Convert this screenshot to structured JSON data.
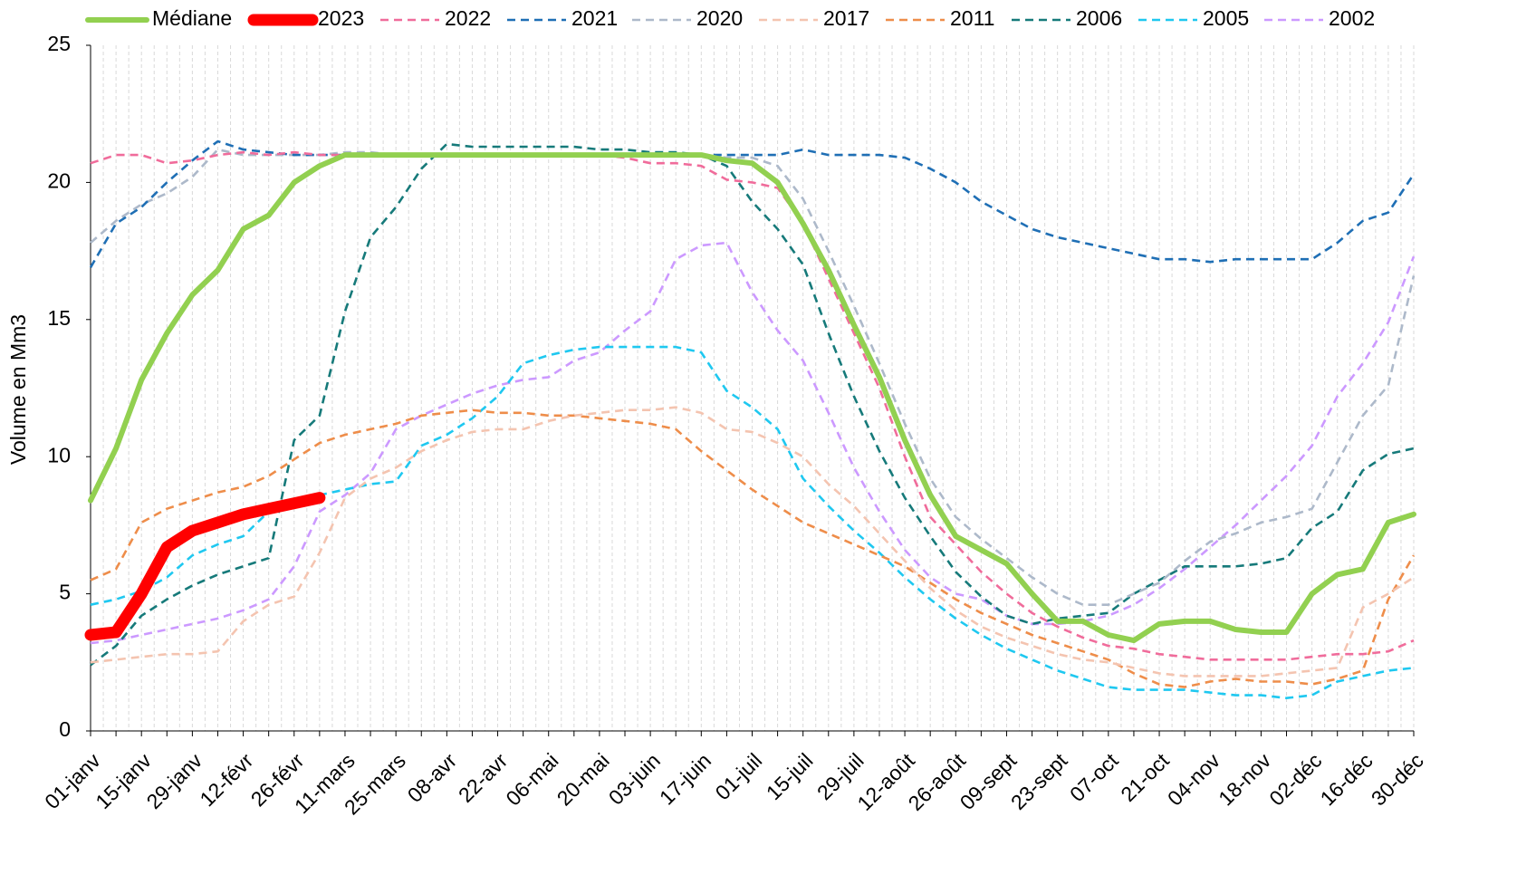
{
  "chart_data": {
    "type": "line",
    "y_label": "Volume en Mm3",
    "categories": [
      "01-janv",
      null,
      "15-janv",
      null,
      "29-janv",
      null,
      "12-févr",
      null,
      "26-févr",
      null,
      "11-mars",
      null,
      "25-mars",
      null,
      "08-avr",
      null,
      "22-avr",
      null,
      "06-mai",
      null,
      "20-mai",
      null,
      "03-juin",
      null,
      "17-juin",
      null,
      "01-juil",
      null,
      "15-juil",
      null,
      "29-juil",
      null,
      "12-août",
      null,
      "26-août",
      null,
      "09-sept",
      null,
      "23-sept",
      null,
      "07-oct",
      null,
      "21-oct",
      null,
      "04-nov",
      null,
      "18-nov",
      null,
      "02-déc",
      null,
      "16-déc",
      null,
      "30-déc"
    ],
    "ylim": [
      0,
      25
    ],
    "yticks": [
      0,
      5,
      10,
      15,
      20,
      25
    ],
    "grid": true,
    "legend": "top",
    "series": [
      {
        "name": "Médiane",
        "color": "#92d050",
        "style": "solid",
        "values": [
          8.4,
          10.3,
          12.8,
          14.5,
          15.9,
          16.8,
          18.3,
          18.8,
          20.0,
          20.6,
          21.0,
          21.0,
          21.0,
          21.0,
          21.0,
          21.0,
          21.0,
          21.0,
          21.0,
          21.0,
          21.0,
          21.0,
          21.0,
          21.0,
          21.0,
          20.8,
          20.7,
          20.0,
          18.5,
          16.8,
          14.8,
          12.9,
          10.6,
          8.6,
          7.1,
          6.6,
          6.1,
          5.0,
          4.0,
          4.0,
          3.5,
          3.3,
          3.9,
          4.0,
          4.0,
          3.7,
          3.6,
          3.6,
          5.0,
          5.7,
          5.9,
          7.6,
          7.9
        ]
      },
      {
        "name": "2023",
        "color": "#ff0000",
        "style": "solid",
        "values": [
          3.5,
          3.6,
          5.0,
          6.7,
          7.3,
          7.6,
          7.9,
          8.1,
          8.3,
          8.5,
          null,
          null,
          null,
          null,
          null,
          null,
          null,
          null,
          null,
          null,
          null,
          null,
          null,
          null,
          null,
          null,
          null,
          null,
          null,
          null,
          null,
          null,
          null,
          null,
          null,
          null,
          null,
          null,
          null,
          null,
          null,
          null,
          null,
          null,
          null,
          null,
          null,
          null,
          null,
          null,
          null,
          null,
          null
        ]
      },
      {
        "name": "2022",
        "color": "#f06c9b",
        "style": "dashed",
        "values": [
          20.7,
          21.0,
          21.0,
          20.7,
          20.8,
          21.0,
          21.1,
          21.0,
          21.1,
          21.0,
          21.0,
          21.0,
          21.0,
          21.0,
          21.0,
          21.0,
          21.0,
          21.0,
          21.0,
          21.0,
          21.0,
          20.9,
          20.7,
          20.7,
          20.6,
          20.1,
          20.0,
          19.8,
          18.5,
          16.5,
          14.5,
          12.5,
          10.0,
          7.8,
          6.8,
          5.8,
          5.0,
          4.3,
          3.8,
          3.4,
          3.1,
          3.0,
          2.8,
          2.7,
          2.6,
          2.6,
          2.6,
          2.6,
          2.7,
          2.8,
          2.8,
          2.9,
          3.3
        ]
      },
      {
        "name": "2021",
        "color": "#1f6fb5",
        "style": "dashed",
        "values": [
          16.9,
          18.5,
          19.1,
          20.0,
          20.8,
          21.5,
          21.2,
          21.1,
          21.0,
          21.0,
          21.0,
          21.0,
          21.0,
          21.0,
          21.0,
          21.0,
          21.0,
          21.0,
          21.0,
          21.0,
          21.0,
          21.0,
          21.0,
          21.0,
          21.0,
          21.0,
          21.0,
          21.0,
          21.2,
          21.0,
          21.0,
          21.0,
          20.9,
          20.5,
          20.0,
          19.3,
          18.8,
          18.3,
          18.0,
          17.8,
          17.6,
          17.4,
          17.2,
          17.2,
          17.1,
          17.2,
          17.2,
          17.2,
          17.2,
          17.8,
          18.6,
          18.9,
          20.3
        ]
      },
      {
        "name": "2020",
        "color": "#adb9ca",
        "style": "dashed",
        "values": [
          17.8,
          18.6,
          19.2,
          19.6,
          20.2,
          21.2,
          21.0,
          21.0,
          21.0,
          21.0,
          21.1,
          21.1,
          21.0,
          21.0,
          21.0,
          21.0,
          21.0,
          21.0,
          21.0,
          21.0,
          21.0,
          21.0,
          21.0,
          21.0,
          21.0,
          20.9,
          20.9,
          20.6,
          19.4,
          17.5,
          15.5,
          13.4,
          11.2,
          9.2,
          7.8,
          7.0,
          6.3,
          5.6,
          5.0,
          4.6,
          4.6,
          5.0,
          5.4,
          6.2,
          6.9,
          7.2,
          7.6,
          7.8,
          8.1,
          9.8,
          11.5,
          12.6,
          16.6
        ]
      },
      {
        "name": "2017",
        "color": "#f4c4b0",
        "style": "dashed",
        "values": [
          2.5,
          2.6,
          2.7,
          2.8,
          2.8,
          2.9,
          4.0,
          4.6,
          4.9,
          6.5,
          8.5,
          9.2,
          9.6,
          10.2,
          10.6,
          10.9,
          11.0,
          11.0,
          11.3,
          11.5,
          11.6,
          11.7,
          11.7,
          11.8,
          11.6,
          11.0,
          10.9,
          10.5,
          10.0,
          9.0,
          8.2,
          7.2,
          6.2,
          5.2,
          4.4,
          3.8,
          3.4,
          3.1,
          2.8,
          2.6,
          2.5,
          2.3,
          2.1,
          2.0,
          2.0,
          2.0,
          2.0,
          2.1,
          2.2,
          2.3,
          4.5,
          5.0,
          5.6
        ]
      },
      {
        "name": "2011",
        "color": "#ee8d4a",
        "style": "dashed",
        "values": [
          5.5,
          5.9,
          7.6,
          8.1,
          8.4,
          8.7,
          8.9,
          9.3,
          9.9,
          10.5,
          10.8,
          11.0,
          11.2,
          11.5,
          11.6,
          11.7,
          11.6,
          11.6,
          11.5,
          11.5,
          11.4,
          11.3,
          11.2,
          11.0,
          10.2,
          9.5,
          8.8,
          8.2,
          7.6,
          7.2,
          6.8,
          6.4,
          6.0,
          5.4,
          4.8,
          4.3,
          3.9,
          3.5,
          3.2,
          2.9,
          2.6,
          2.1,
          1.7,
          1.6,
          1.8,
          1.9,
          1.8,
          1.8,
          1.7,
          1.9,
          2.2,
          4.8,
          6.4
        ]
      },
      {
        "name": "2006",
        "color": "#167a7a",
        "style": "dashed",
        "values": [
          2.4,
          3.1,
          4.2,
          4.8,
          5.3,
          5.7,
          6.0,
          6.3,
          10.6,
          11.5,
          15.3,
          18.0,
          19.1,
          20.5,
          21.4,
          21.3,
          21.3,
          21.3,
          21.3,
          21.3,
          21.2,
          21.2,
          21.1,
          21.1,
          21.0,
          20.6,
          19.3,
          18.3,
          17.0,
          14.5,
          12.2,
          10.2,
          8.5,
          7.1,
          5.8,
          4.9,
          4.2,
          3.9,
          4.1,
          4.2,
          4.3,
          5.0,
          5.5,
          6.0,
          6.0,
          6.0,
          6.1,
          6.3,
          7.4,
          8.0,
          9.5,
          10.1,
          10.3
        ]
      },
      {
        "name": "2005",
        "color": "#1fc8f0",
        "style": "dashed",
        "values": [
          4.6,
          4.8,
          5.1,
          5.6,
          6.4,
          6.8,
          7.1,
          8.0,
          8.4,
          8.6,
          8.8,
          9.0,
          9.1,
          10.4,
          10.8,
          11.4,
          12.2,
          13.4,
          13.7,
          13.9,
          14.0,
          14.0,
          14.0,
          14.0,
          13.8,
          12.4,
          11.8,
          11.0,
          9.2,
          8.2,
          7.3,
          6.5,
          5.6,
          4.8,
          4.1,
          3.5,
          3.0,
          2.6,
          2.2,
          1.9,
          1.6,
          1.5,
          1.5,
          1.5,
          1.4,
          1.3,
          1.3,
          1.2,
          1.3,
          1.8,
          2.0,
          2.2,
          2.3
        ]
      },
      {
        "name": "2002",
        "color": "#cc99ff",
        "style": "dashed",
        "values": [
          3.2,
          3.3,
          3.5,
          3.7,
          3.9,
          4.1,
          4.4,
          4.8,
          6.0,
          8.0,
          8.6,
          9.4,
          11.0,
          11.5,
          11.9,
          12.3,
          12.6,
          12.8,
          12.9,
          13.5,
          13.8,
          14.6,
          15.3,
          17.2,
          17.7,
          17.8,
          16.0,
          14.6,
          13.5,
          11.6,
          9.6,
          8.0,
          6.6,
          5.6,
          5.0,
          4.8,
          4.2,
          3.9,
          3.9,
          4.0,
          4.2,
          4.6,
          5.2,
          5.9,
          6.7,
          7.5,
          8.4,
          9.3,
          10.4,
          12.2,
          13.4,
          14.9,
          17.3
        ]
      }
    ]
  }
}
